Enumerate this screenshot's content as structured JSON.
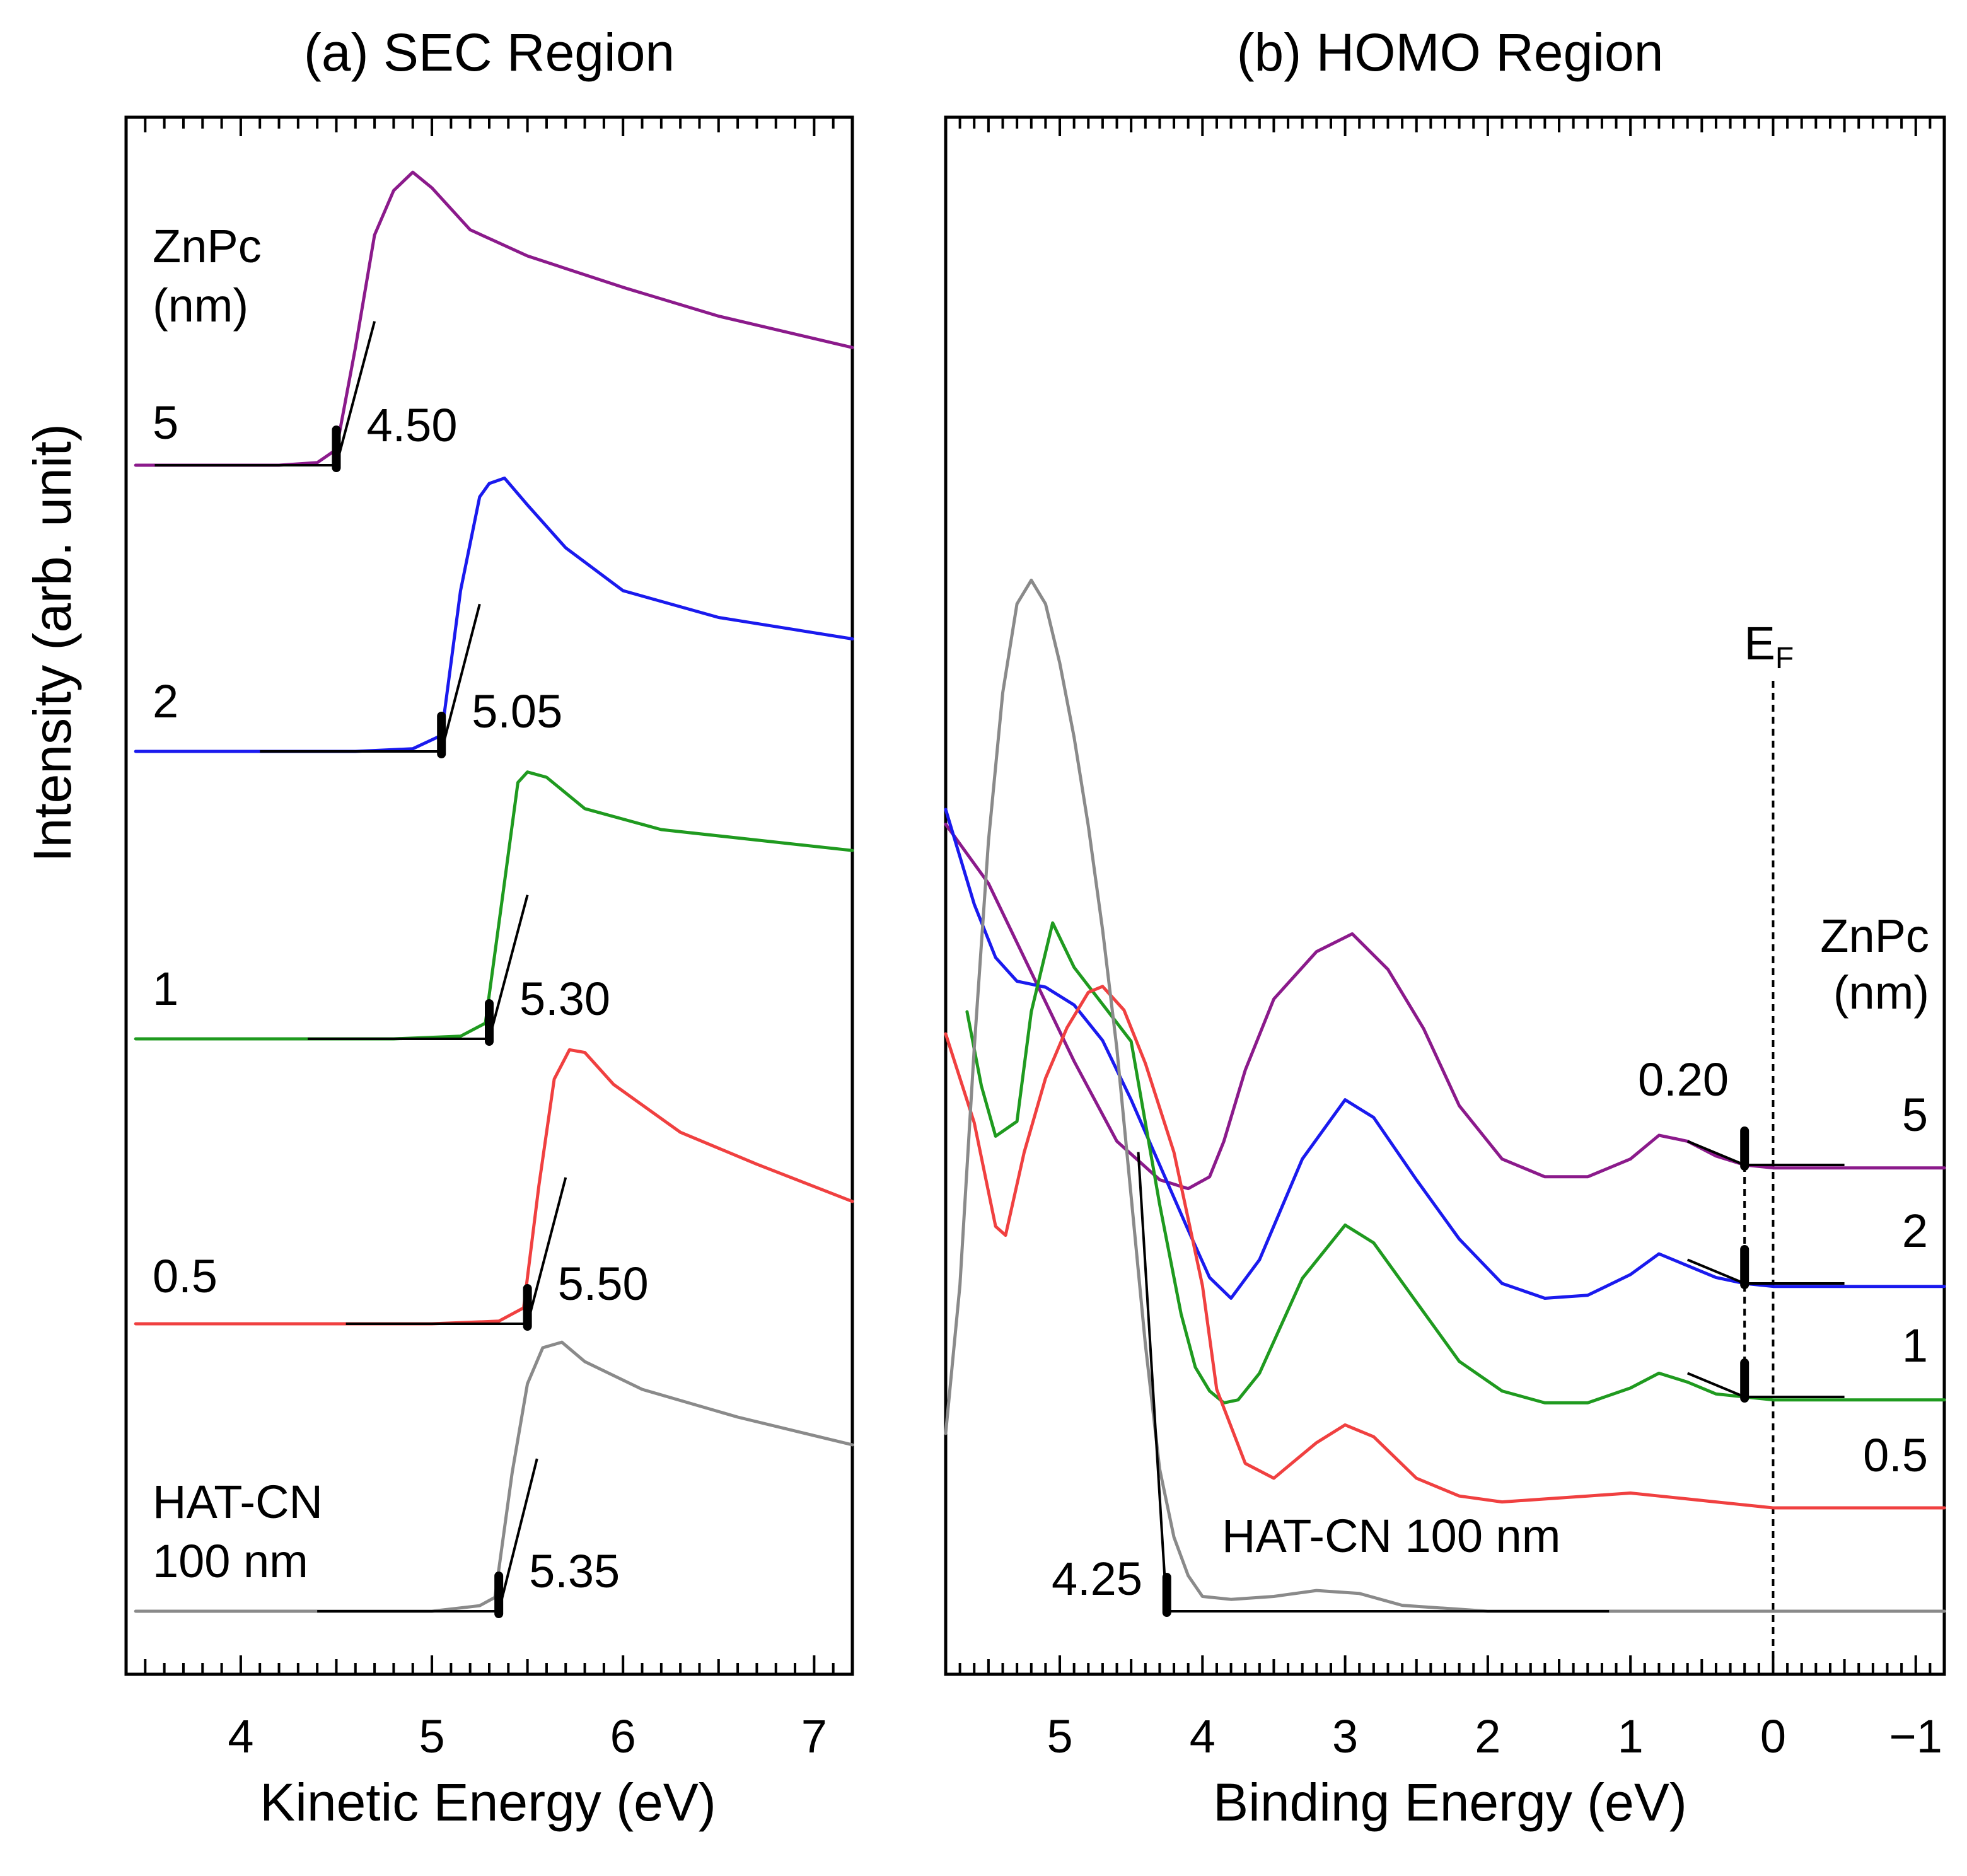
{
  "chart_data": [
    {
      "type": "line",
      "title": "(a) SEC Region",
      "xlabel": "Kinetic Energy (eV)",
      "ylabel": "Intensity (arb. unit)",
      "xlim": [
        3.4,
        7.2
      ],
      "xticks": [
        4,
        5,
        6,
        7
      ],
      "y_scale": "arbitrary, curves offset vertically",
      "legend_title": [
        "ZnPc",
        "(nm)"
      ],
      "series": [
        {
          "name": "5",
          "color": "#8B1A8B",
          "cutoff_label": "4.50",
          "x": [
            3.45,
            4.2,
            4.4,
            4.5,
            4.6,
            4.7,
            4.8,
            4.9,
            5.0,
            5.2,
            5.5,
            6.0,
            6.5,
            7.2
          ],
          "y": [
            0,
            0,
            0.01,
            0.06,
            0.45,
            0.88,
            1.05,
            1.12,
            1.06,
            0.9,
            0.8,
            0.68,
            0.57,
            0.45
          ]
        },
        {
          "name": "2",
          "color": "#1A1AEE",
          "cutoff_label": "5.05",
          "x": [
            3.45,
            4.6,
            4.9,
            5.05,
            5.15,
            5.25,
            5.3,
            5.38,
            5.5,
            5.7,
            6.0,
            6.5,
            7.2
          ],
          "y": [
            0,
            0,
            0.01,
            0.06,
            0.6,
            0.95,
            1.0,
            1.02,
            0.92,
            0.76,
            0.6,
            0.5,
            0.42
          ]
        },
        {
          "name": "1",
          "color": "#1F9A1F",
          "cutoff_label": "5.30",
          "x": [
            3.45,
            4.8,
            5.15,
            5.28,
            5.38,
            5.45,
            5.5,
            5.6,
            5.8,
            6.2,
            6.7,
            7.2
          ],
          "y": [
            0,
            0,
            0.01,
            0.06,
            0.6,
            0.98,
            1.02,
            1.0,
            0.88,
            0.8,
            0.76,
            0.72
          ]
        },
        {
          "name": "0.5",
          "color": "#F04040",
          "cutoff_label": "5.50",
          "x": [
            3.45,
            5.0,
            5.35,
            5.48,
            5.56,
            5.64,
            5.72,
            5.8,
            5.95,
            6.3,
            6.7,
            7.2
          ],
          "y": [
            0,
            0,
            0.01,
            0.06,
            0.52,
            0.92,
            1.03,
            1.02,
            0.9,
            0.72,
            0.6,
            0.46
          ]
        },
        {
          "name": "HAT-CN 100 nm",
          "color": "#8A8A8A",
          "cutoff_label": "5.35",
          "x": [
            3.45,
            5.0,
            5.25,
            5.33,
            5.42,
            5.5,
            5.58,
            5.68,
            5.8,
            6.1,
            6.6,
            7.2
          ],
          "y": [
            0,
            0,
            0.02,
            0.05,
            0.5,
            0.82,
            0.95,
            0.97,
            0.9,
            0.8,
            0.7,
            0.6
          ]
        }
      ]
    },
    {
      "type": "line",
      "title": "(b) HOMO Region",
      "xlabel": "Binding Energy (eV)",
      "xlim": [
        5.8,
        -1.2
      ],
      "xticks": [
        5,
        4,
        3,
        2,
        1,
        0,
        -1
      ],
      "xtick_labels": [
        "5",
        "4",
        "3",
        "2",
        "1",
        "0",
        "−1"
      ],
      "fermi_label": "E",
      "fermi_subscript": "F",
      "fermi_level": 0,
      "legend_title": [
        "ZnPc",
        "(nm)"
      ],
      "homo_onset_label": "0.20",
      "hatcn_onset_label": "4.25",
      "hatcn_label": "HAT-CN 100 nm",
      "series": [
        {
          "name": "5",
          "color": "#8B1A8B",
          "x": [
            5.8,
            5.5,
            5.2,
            4.9,
            4.6,
            4.3,
            4.1,
            3.95,
            3.85,
            3.7,
            3.5,
            3.2,
            2.95,
            2.7,
            2.45,
            2.2,
            1.9,
            1.6,
            1.3,
            1.0,
            0.8,
            0.6,
            0.4,
            0.2,
            0.0,
            -0.3,
            -1.2
          ],
          "y": [
            1.15,
            0.95,
            0.65,
            0.35,
            0.08,
            -0.05,
            -0.08,
            -0.04,
            0.08,
            0.32,
            0.56,
            0.72,
            0.78,
            0.66,
            0.46,
            0.2,
            0.02,
            -0.04,
            -0.04,
            0.02,
            0.1,
            0.08,
            0.03,
            0.0,
            -0.01,
            -0.01,
            -0.01
          ]
        },
        {
          "name": "2",
          "color": "#1A1AEE",
          "x": [
            5.8,
            5.6,
            5.45,
            5.3,
            5.1,
            4.9,
            4.7,
            4.5,
            4.3,
            4.1,
            3.95,
            3.8,
            3.6,
            3.3,
            3.0,
            2.8,
            2.5,
            2.2,
            1.9,
            1.6,
            1.3,
            1.0,
            0.8,
            0.6,
            0.4,
            0.2,
            0.0,
            -0.3,
            -1.2
          ],
          "y": [
            1.6,
            1.28,
            1.1,
            1.02,
            1.0,
            0.94,
            0.82,
            0.62,
            0.4,
            0.18,
            0.02,
            -0.05,
            0.08,
            0.42,
            0.62,
            0.56,
            0.35,
            0.15,
            0.0,
            -0.05,
            -0.04,
            0.03,
            0.1,
            0.06,
            0.02,
            0.0,
            -0.01,
            -0.01,
            -0.01
          ]
        },
        {
          "name": "1",
          "color": "#1F9A1F",
          "x": [
            5.65,
            5.55,
            5.45,
            5.3,
            5.2,
            5.05,
            4.9,
            4.5,
            4.3,
            4.15,
            4.05,
            3.95,
            3.85,
            3.75,
            3.6,
            3.3,
            3.0,
            2.8,
            2.5,
            2.2,
            1.9,
            1.6,
            1.3,
            1.0,
            0.8,
            0.6,
            0.4,
            0.2,
            0.0,
            -0.3,
            -1.2
          ],
          "y": [
            1.3,
            1.05,
            0.88,
            0.93,
            1.3,
            1.6,
            1.45,
            1.2,
            0.65,
            0.28,
            0.1,
            0.02,
            -0.02,
            -0.01,
            0.08,
            0.4,
            0.58,
            0.52,
            0.32,
            0.12,
            0.02,
            -0.02,
            -0.02,
            0.03,
            0.08,
            0.05,
            0.01,
            0.0,
            -0.01,
            -0.01,
            -0.01
          ]
        },
        {
          "name": "0.5",
          "color": "#F04040",
          "x": [
            5.8,
            5.6,
            5.45,
            5.38,
            5.25,
            5.1,
            4.95,
            4.8,
            4.7,
            4.55,
            4.4,
            4.2,
            4.0,
            3.9,
            3.7,
            3.5,
            3.2,
            3.0,
            2.8,
            2.5,
            2.2,
            1.9,
            1.6,
            1.3,
            1.0,
            0.8,
            0.6,
            0.4,
            0.2,
            0.0,
            -0.3,
            -1.2
          ],
          "y": [
            1.6,
            1.3,
            0.95,
            0.92,
            1.2,
            1.45,
            1.62,
            1.74,
            1.76,
            1.68,
            1.5,
            1.2,
            0.75,
            0.4,
            0.15,
            0.1,
            0.22,
            0.28,
            0.24,
            0.1,
            0.04,
            0.02,
            0.03,
            0.04,
            0.05,
            0.04,
            0.03,
            0.02,
            0.01,
            0.0,
            0.0,
            0.0
          ]
        },
        {
          "name": "HAT-CN 100 nm",
          "color": "#8A8A8A",
          "x": [
            5.8,
            5.7,
            5.6,
            5.5,
            5.4,
            5.3,
            5.2,
            5.1,
            5.0,
            4.9,
            4.8,
            4.7,
            4.6,
            4.5,
            4.4,
            4.3,
            4.2,
            4.1,
            4.0,
            3.8,
            3.5,
            3.2,
            2.9,
            2.6,
            2.3,
            2.0,
            1.5,
            1.0,
            0.5,
            0.0,
            -0.5,
            -1.2
          ],
          "y": [
            0.6,
            1.1,
            1.9,
            2.6,
            3.1,
            3.4,
            3.48,
            3.4,
            3.2,
            2.95,
            2.65,
            2.3,
            1.9,
            1.4,
            0.9,
            0.48,
            0.25,
            0.12,
            0.05,
            0.04,
            0.05,
            0.07,
            0.06,
            0.02,
            0.01,
            0.0,
            0.0,
            0.0,
            0.0,
            0.0,
            0.0,
            0.0
          ]
        }
      ]
    }
  ]
}
